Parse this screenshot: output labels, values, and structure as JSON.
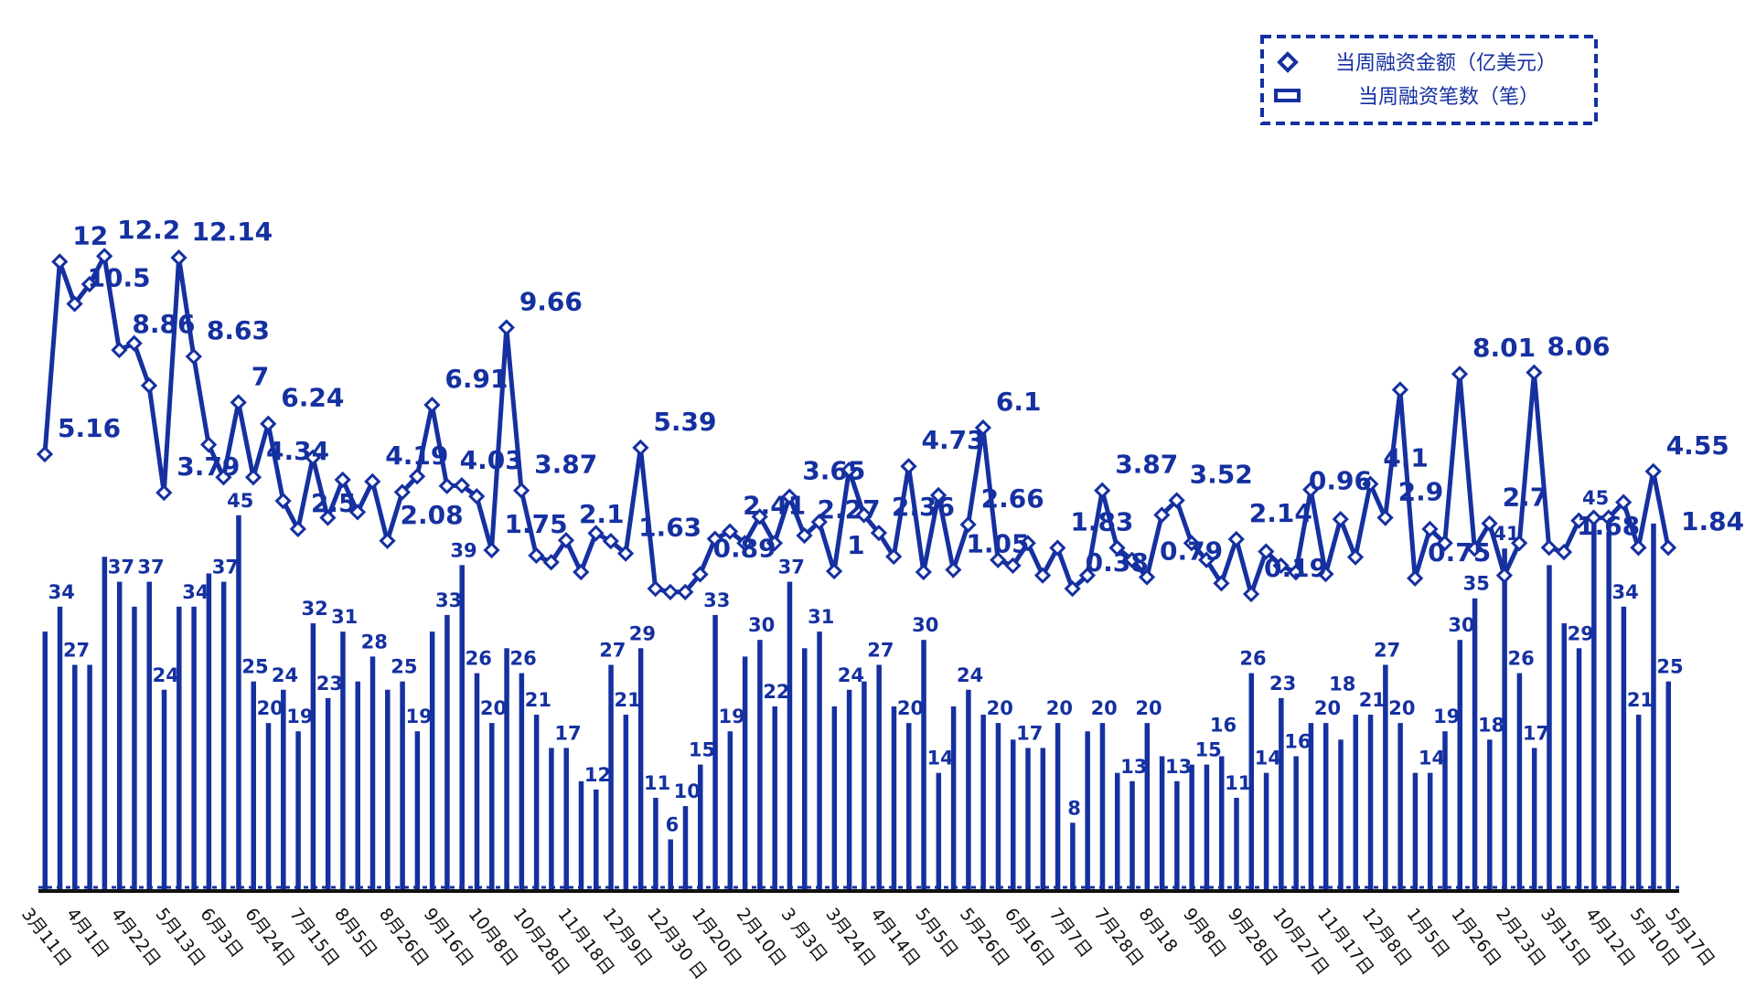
{
  "chart_data": {
    "type": "bar+line",
    "title": "",
    "colors": {
      "series": "#1530a0",
      "axis": "#111111"
    },
    "legend": {
      "placement": "top-right",
      "entries": [
        {
          "name": "当周融资金额（亿美元）",
          "marker": "diamond"
        },
        {
          "name": "当周融资笔数（笔）",
          "marker": "rect"
        }
      ]
    },
    "series": [
      {
        "name": "当周融资笔数（笔）",
        "type": "bar",
        "ylim": [
          0,
          107
        ],
        "values": [
          31,
          34,
          27,
          27,
          40,
          37,
          34,
          37,
          24,
          34,
          34,
          38,
          37,
          45,
          25,
          20,
          24,
          19,
          32,
          23,
          31,
          25,
          28,
          24,
          25,
          19,
          31,
          33,
          39,
          26,
          20,
          29,
          26,
          21,
          17,
          17,
          13,
          12,
          27,
          21,
          29,
          11,
          6,
          10,
          15,
          33,
          19,
          28,
          30,
          22,
          37,
          29,
          31,
          22,
          24,
          25,
          27,
          22,
          20,
          30,
          14,
          22,
          24,
          21,
          20,
          18,
          17,
          17,
          20,
          8,
          19,
          20,
          14,
          13,
          20,
          16,
          13,
          15,
          15,
          16,
          11,
          26,
          14,
          23,
          16,
          20,
          20,
          18,
          21,
          21,
          27,
          20,
          14,
          14,
          19,
          30,
          35,
          18,
          41,
          26,
          17,
          39,
          32,
          29,
          45,
          43,
          34,
          21,
          44,
          25
        ],
        "labeled_points": [
          1,
          2,
          5,
          7,
          8,
          10,
          12,
          13,
          14,
          15,
          16,
          17,
          18,
          19,
          20,
          22,
          24,
          25,
          27,
          28,
          29,
          30,
          32,
          33,
          35,
          37,
          38,
          39,
          40,
          41,
          42,
          43,
          44,
          45,
          46,
          48,
          49,
          50,
          52,
          54,
          56,
          58,
          59,
          60,
          62,
          64,
          66,
          68,
          69,
          71,
          73,
          74,
          76,
          78,
          79,
          80,
          81,
          82,
          83,
          84,
          86,
          87,
          89,
          90,
          91,
          93,
          94,
          95,
          96,
          97,
          98,
          99,
          100,
          103,
          104,
          106,
          107,
          109
        ]
      },
      {
        "name": "当周融资金额（亿美元）",
        "type": "line",
        "ylim": [
          -10.3,
          21.3
        ],
        "values": [
          5.16,
          12,
          10.5,
          11.2,
          12.2,
          8.86,
          9.1,
          7.6,
          3.79,
          12.14,
          8.63,
          5.5,
          4.34,
          7,
          4.34,
          6.24,
          3.5,
          2.5,
          5.04,
          2.9,
          4.25,
          3.1,
          4.19,
          2.08,
          3.81,
          4.37,
          6.91,
          4.03,
          4.05,
          3.66,
          1.75,
          9.66,
          3.87,
          1.56,
          1.32,
          2.1,
          0.97,
          2.35,
          2.07,
          1.63,
          5.39,
          0.38,
          0.26,
          0.26,
          0.89,
          2.15,
          2.41,
          2.0,
          2.94,
          2.0,
          3.65,
          2.27,
          2.75,
          1,
          4.6,
          3.0,
          2.36,
          1.52,
          4.73,
          0.97,
          3.7,
          1.05,
          2.66,
          6.1,
          1.4,
          1.2,
          2.0,
          0.85,
          1.83,
          0.38,
          0.85,
          3.87,
          1.83,
          1.4,
          0.79,
          3.0,
          3.52,
          2.0,
          1.4,
          0.57,
          2.14,
          0.19,
          1.7,
          1.2,
          0.96,
          3.9,
          0.9,
          2.85,
          1.5,
          4.1,
          2.9,
          7.45,
          0.75,
          2.5,
          2.0,
          8.01,
          1.8,
          2.7,
          0.85,
          2.0,
          8.06,
          1.84,
          1.68,
          2.8,
          2.9,
          2.9,
          3.45,
          1.84,
          4.55,
          1.84
        ],
        "labeled_points": [
          0,
          1,
          2,
          4,
          5,
          8,
          9,
          10,
          13,
          14,
          15,
          17,
          22,
          23,
          26,
          27,
          30,
          31,
          32,
          35,
          39,
          40,
          44,
          46,
          50,
          51,
          53,
          56,
          58,
          61,
          62,
          63,
          68,
          69,
          71,
          74,
          76,
          80,
          81,
          84,
          89,
          90,
          92,
          95,
          97,
          100,
          102,
          108,
          109
        ]
      }
    ],
    "x_ticks": [
      {
        "index": 0,
        "label": "3月11日"
      },
      {
        "index": 3,
        "label": "4月1日"
      },
      {
        "index": 6,
        "label": "4月22日"
      },
      {
        "index": 9,
        "label": "5月13日"
      },
      {
        "index": 12,
        "label": "6月3日"
      },
      {
        "index": 15,
        "label": "6月24日"
      },
      {
        "index": 18,
        "label": "7月15日"
      },
      {
        "index": 21,
        "label": "8月5日"
      },
      {
        "index": 24,
        "label": "8月26日"
      },
      {
        "index": 27,
        "label": "9月16日"
      },
      {
        "index": 30,
        "label": "10月8日"
      },
      {
        "index": 33,
        "label": "10月28日"
      },
      {
        "index": 36,
        "label": "11月18日"
      },
      {
        "index": 39,
        "label": "12月9日"
      },
      {
        "index": 42,
        "label": "12月30 日"
      },
      {
        "index": 45,
        "label": "1月20日"
      },
      {
        "index": 48,
        "label": "2月10日"
      },
      {
        "index": 51,
        "label": "3 月3日"
      },
      {
        "index": 54,
        "label": "3月24日"
      },
      {
        "index": 57,
        "label": "4月14日"
      },
      {
        "index": 60,
        "label": "5月5日"
      },
      {
        "index": 63,
        "label": "5月26日"
      },
      {
        "index": 66,
        "label": "6月16日"
      },
      {
        "index": 69,
        "label": "7月7日"
      },
      {
        "index": 72,
        "label": "7月28日"
      },
      {
        "index": 75,
        "label": "8月18"
      },
      {
        "index": 78,
        "label": "9月8日"
      },
      {
        "index": 81,
        "label": "9月28日"
      },
      {
        "index": 84,
        "label": "10月27日"
      },
      {
        "index": 87,
        "label": "11月17日"
      },
      {
        "index": 90,
        "label": "12月8日"
      },
      {
        "index": 93,
        "label": "1月5日"
      },
      {
        "index": 96,
        "label": "1月26日"
      },
      {
        "index": 99,
        "label": "2月23日"
      },
      {
        "index": 102,
        "label": "3月15日"
      },
      {
        "index": 105,
        "label": "4月12日"
      },
      {
        "index": 108,
        "label": "5月10日"
      },
      {
        "index": 109,
        "label": "5月17日"
      }
    ],
    "xlabel": "",
    "ylabel": "",
    "grid": false
  }
}
